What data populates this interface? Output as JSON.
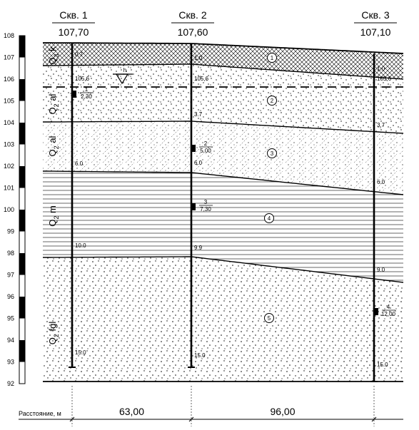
{
  "boreholes": [
    {
      "name": "Скв. 1",
      "elevation": "107,70",
      "depths": [
        {
          "text": "0.7"
        },
        {
          "text": "105,6"
        },
        {
          "text": "6.0"
        },
        {
          "text": "10.0"
        },
        {
          "text": "15.0"
        }
      ],
      "samples": [
        {
          "num": "1",
          "depth": "2,30"
        }
      ]
    },
    {
      "name": "Скв. 2",
      "elevation": "107,60",
      "depths": [
        {
          "text": "1.0"
        },
        {
          "text": "105,6"
        },
        {
          "text": "3.7"
        },
        {
          "text": "6.0"
        },
        {
          "text": "9.9"
        },
        {
          "text": "15.0"
        }
      ],
      "samples": [
        {
          "num": "2",
          "depth": "5,00"
        },
        {
          "num": "3",
          "depth": "7,30"
        }
      ]
    },
    {
      "name": "Скв. 3",
      "elevation": "107,10",
      "depths": [
        {
          "text": "1.0"
        },
        {
          "text": "105,6"
        },
        {
          "text": "3.7"
        },
        {
          "text": "6.0"
        },
        {
          "text": "9.0"
        },
        {
          "text": "15.0"
        }
      ],
      "samples": [
        {
          "num": "4",
          "depth": "12,00"
        }
      ]
    }
  ],
  "elevation_scale": {
    "min": 92,
    "max": 108,
    "ticks": [
      "108",
      "107",
      "106",
      "105",
      "104",
      "103",
      "102",
      "101",
      "100",
      "99",
      "98",
      "97",
      "96",
      "95",
      "94",
      "93",
      "92"
    ]
  },
  "layers": [
    {
      "num": "1",
      "index_main": "Q",
      "index_sub": "3",
      "index_suffix": "k"
    },
    {
      "num": "2",
      "index_main": "Q",
      "index_sub": "2",
      "index_suffix": "al"
    },
    {
      "num": "3",
      "index_main": "Q",
      "index_sub": "2",
      "index_suffix": "al"
    },
    {
      "num": "4",
      "index_main": "Q",
      "index_sub": "2",
      "index_suffix": "m"
    },
    {
      "num": "5",
      "index_main": "Q",
      "index_sub": "2",
      "index_suffix": "fgl"
    }
  ],
  "water_table": {
    "symbol": "∇",
    "label": "h"
  },
  "distances": {
    "caption": "Расстояние, м",
    "values": [
      "63,00",
      "96,00"
    ]
  }
}
